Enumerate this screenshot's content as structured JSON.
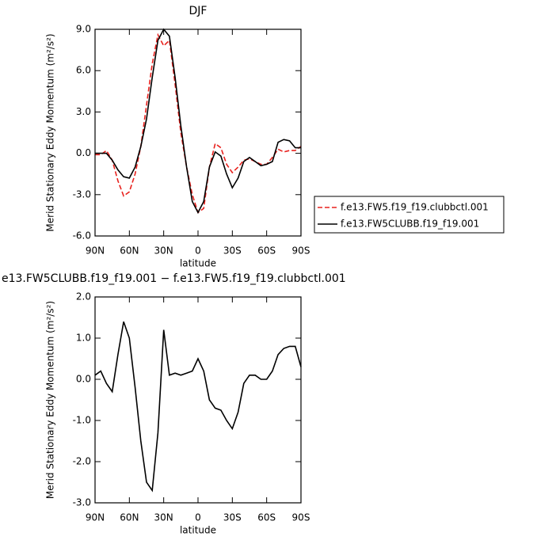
{
  "chart_data": [
    {
      "type": "line",
      "title": "DJF",
      "x_label": "latitude",
      "y_label": "Merid Stationary Eddy Momentum (m²/s²)",
      "x": [
        90,
        85,
        80,
        75,
        70,
        65,
        60,
        55,
        50,
        45,
        40,
        35,
        30,
        25,
        20,
        15,
        10,
        5,
        0,
        -5,
        -10,
        -15,
        -20,
        -25,
        -30,
        -35,
        -40,
        -45,
        -50,
        -55,
        -60,
        -65,
        -70,
        -75,
        -80,
        -85,
        -90
      ],
      "xlim": [
        90,
        -90
      ],
      "xticks": [
        {
          "value": 90,
          "label": "90N"
        },
        {
          "value": 60,
          "label": "60N"
        },
        {
          "value": 30,
          "label": "30N"
        },
        0,
        {
          "value": -30,
          "label": "30S"
        },
        {
          "value": -60,
          "label": "60S"
        },
        {
          "value": -90,
          "label": "90S"
        }
      ],
      "ylim": [
        -6,
        9
      ],
      "yticks": [
        {
          "value": -6,
          "label": "-6.0"
        },
        {
          "value": -3,
          "label": "-3.0"
        },
        {
          "value": 0,
          "label": "0.0"
        },
        {
          "value": 3,
          "label": "3.0"
        },
        {
          "value": 6,
          "label": "6.0"
        },
        {
          "value": 9,
          "label": "9.0"
        }
      ],
      "legend": "right",
      "series": [
        {
          "name": "f.e13.FW5.f19_f19.clubbctl.001",
          "color": "#e8211d",
          "line_style": "dashed",
          "values": [
            -0.1,
            -0.1,
            0.2,
            -0.5,
            -2.0,
            -3.1,
            -2.8,
            -1.5,
            0.5,
            3.5,
            6.5,
            8.6,
            7.8,
            8.2,
            5.0,
            1.5,
            -1.0,
            -3.0,
            -4.3,
            -4.0,
            -1.0,
            0.7,
            0.4,
            -0.8,
            -1.4,
            -1.0,
            -0.5,
            -0.4,
            -0.6,
            -0.8,
            -0.8,
            -0.3,
            0.3,
            0.1,
            0.2,
            0.2,
            0.5
          ]
        },
        {
          "name": "f.e13.FW5CLUBB.f19_f19.001",
          "color": "#000000",
          "line_style": "solid",
          "values": [
            0.0,
            0.0,
            0.0,
            -0.5,
            -1.2,
            -1.7,
            -1.8,
            -1.0,
            0.5,
            2.5,
            5.5,
            8.2,
            9.0,
            8.5,
            5.5,
            2.0,
            -1.0,
            -3.5,
            -4.3,
            -3.5,
            -1.0,
            0.1,
            -0.2,
            -1.5,
            -2.5,
            -1.8,
            -0.6,
            -0.3,
            -0.6,
            -0.9,
            -0.8,
            -0.6,
            0.8,
            1.0,
            0.9,
            0.4,
            0.4
          ]
        }
      ]
    },
    {
      "type": "line",
      "title": "e13.FW5CLUBB.f19_f19.001 − f.e13.FW5.f19_f19.clubbctl.001",
      "x_label": "latitude",
      "y_label": "Merid Stationary Eddy Momentum (m²/s²)",
      "x": [
        90,
        85,
        80,
        75,
        70,
        65,
        60,
        55,
        50,
        45,
        40,
        35,
        30,
        25,
        20,
        15,
        10,
        5,
        0,
        -5,
        -10,
        -15,
        -20,
        -25,
        -30,
        -35,
        -40,
        -45,
        -50,
        -55,
        -60,
        -65,
        -70,
        -75,
        -80,
        -85,
        -90
      ],
      "xlim": [
        90,
        -90
      ],
      "xticks": [
        {
          "value": 90,
          "label": "90N"
        },
        {
          "value": 60,
          "label": "60N"
        },
        {
          "value": 30,
          "label": "30N"
        },
        0,
        {
          "value": -30,
          "label": "30S"
        },
        {
          "value": -60,
          "label": "60S"
        },
        {
          "value": -90,
          "label": "90S"
        }
      ],
      "ylim": [
        -3,
        2
      ],
      "yticks": [
        {
          "value": -3,
          "label": "-3.0"
        },
        {
          "value": -2,
          "label": "-2.0"
        },
        {
          "value": -1,
          "label": "-1.0"
        },
        {
          "value": 0,
          "label": "0.0"
        },
        {
          "value": 1,
          "label": "1.0"
        },
        {
          "value": 2,
          "label": "2.0"
        }
      ],
      "series": [
        {
          "color": "#000000",
          "line_style": "solid",
          "values": [
            0.1,
            0.2,
            -0.1,
            -0.3,
            0.6,
            1.4,
            1.0,
            -0.2,
            -1.5,
            -2.5,
            -2.7,
            -1.3,
            1.2,
            0.1,
            0.15,
            0.1,
            0.15,
            0.2,
            0.5,
            0.2,
            -0.5,
            -0.7,
            -0.75,
            -1.0,
            -1.2,
            -0.8,
            -0.1,
            0.1,
            0.1,
            0.0,
            0.0,
            0.2,
            0.6,
            0.75,
            0.8,
            0.8,
            0.3
          ]
        }
      ]
    }
  ]
}
